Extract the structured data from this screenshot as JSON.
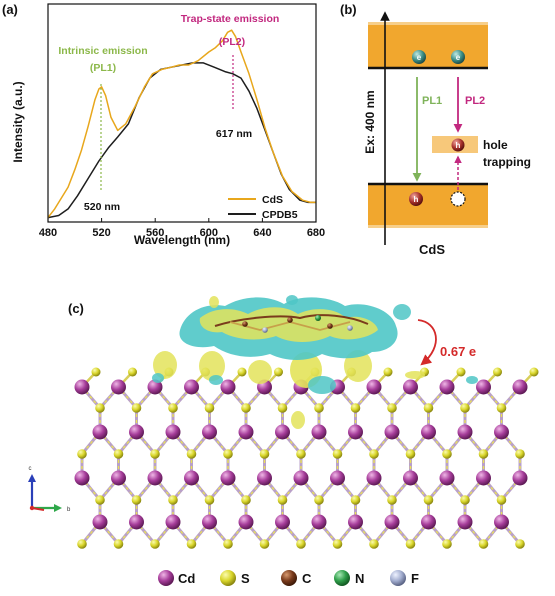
{
  "panel_a": {
    "label": "(a)",
    "annotations": {
      "intrinsic_title": "Intrinsic emission",
      "intrinsic_sub": "(PL1)",
      "trap_title": "Trap-state emission",
      "trap_sub": "(PL2)",
      "peak1": "520 nm",
      "peak2": "617 nm"
    },
    "legend": [
      "CdS",
      "CPDB5"
    ]
  },
  "chart_data": {
    "type": "line",
    "xlabel": "Wavelength (nm)",
    "ylabel": "Intensity (a.u.)",
    "xlim": [
      480,
      680
    ],
    "ylim": [
      0,
      1
    ],
    "xticks": [
      "480",
      "520",
      "560",
      "600",
      "640",
      "680"
    ],
    "legend_position": "bottom-right",
    "colors": {
      "CdS": "#e8a71c",
      "CPDB5": "#1e1e1e"
    },
    "series": [
      {
        "name": "CdS",
        "points": [
          [
            480,
            0.02
          ],
          [
            485,
            0.06
          ],
          [
            490,
            0.11
          ],
          [
            495,
            0.16
          ],
          [
            500,
            0.24
          ],
          [
            505,
            0.33
          ],
          [
            510,
            0.44
          ],
          [
            515,
            0.56
          ],
          [
            518,
            0.61
          ],
          [
            520,
            0.62
          ],
          [
            523,
            0.58
          ],
          [
            527,
            0.48
          ],
          [
            532,
            0.42
          ],
          [
            538,
            0.45
          ],
          [
            545,
            0.53
          ],
          [
            552,
            0.62
          ],
          [
            558,
            0.68
          ],
          [
            565,
            0.7
          ],
          [
            572,
            0.71
          ],
          [
            578,
            0.72
          ],
          [
            585,
            0.72
          ],
          [
            592,
            0.74
          ],
          [
            600,
            0.78
          ],
          [
            605,
            0.8
          ],
          [
            610,
            0.83
          ],
          [
            614,
            0.87
          ],
          [
            617,
            0.88
          ],
          [
            620,
            0.85
          ],
          [
            624,
            0.78
          ],
          [
            630,
            0.68
          ],
          [
            636,
            0.56
          ],
          [
            642,
            0.43
          ],
          [
            648,
            0.32
          ],
          [
            655,
            0.21
          ],
          [
            662,
            0.14
          ],
          [
            670,
            0.1
          ],
          [
            676,
            0.09
          ],
          [
            680,
            0.09
          ]
        ]
      },
      {
        "name": "CPDB5",
        "points": [
          [
            480,
            0.02
          ],
          [
            488,
            0.03
          ],
          [
            495,
            0.06
          ],
          [
            502,
            0.12
          ],
          [
            510,
            0.2
          ],
          [
            518,
            0.28
          ],
          [
            525,
            0.34
          ],
          [
            532,
            0.39
          ],
          [
            540,
            0.45
          ],
          [
            548,
            0.57
          ],
          [
            556,
            0.66
          ],
          [
            564,
            0.7
          ],
          [
            572,
            0.71
          ],
          [
            580,
            0.72
          ],
          [
            588,
            0.73
          ],
          [
            596,
            0.73
          ],
          [
            604,
            0.71
          ],
          [
            612,
            0.69
          ],
          [
            618,
            0.68
          ],
          [
            624,
            0.66
          ],
          [
            630,
            0.6
          ],
          [
            636,
            0.52
          ],
          [
            642,
            0.42
          ],
          [
            648,
            0.32
          ],
          [
            654,
            0.22
          ],
          [
            660,
            0.15
          ],
          [
            668,
            0.1
          ],
          [
            674,
            0.09
          ],
          [
            680,
            0.09
          ]
        ]
      }
    ]
  },
  "panel_b": {
    "label": "(b)",
    "excitation": "Ex: 400 nm",
    "pl1": "PL1",
    "pl2": "PL2",
    "hole_line1": "hole",
    "hole_line2": "trapping",
    "material": "CdS",
    "electron_symbol": "e",
    "hole_symbol": "h"
  },
  "panel_c": {
    "label": "(c)",
    "charge": "0.67 e",
    "axis_c": "c",
    "axis_b": "b",
    "legend": [
      {
        "symbol": "Cd",
        "color": "#a63d9a"
      },
      {
        "symbol": "S",
        "color": "#d9d62b"
      },
      {
        "symbol": "C",
        "color": "#7a3b1c"
      },
      {
        "symbol": "N",
        "color": "#2f9e4a"
      },
      {
        "symbol": "F",
        "color": "#a3aed0"
      }
    ]
  }
}
